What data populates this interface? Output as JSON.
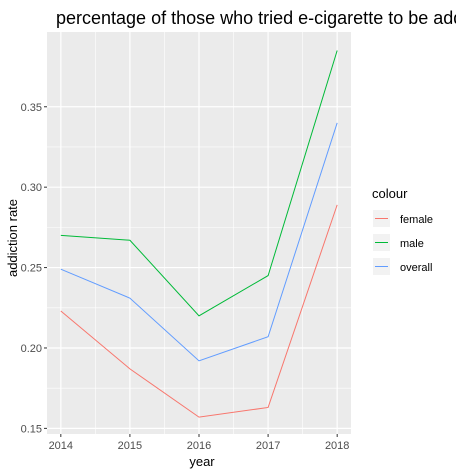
{
  "chart_data": {
    "type": "line",
    "title": "percentage of those who tried e-cigarette to be addicted",
    "xlabel": "year",
    "ylabel": "addiction rate",
    "x": [
      2014,
      2015,
      2016,
      2017,
      2018
    ],
    "xlim": [
      2013.8,
      2018.2
    ],
    "ylim": [
      0.1465,
      0.3965
    ],
    "y_ticks": [
      0.15,
      0.2,
      0.25,
      0.3,
      0.35
    ],
    "y_tick_labels": [
      "0.15",
      "0.20",
      "0.25",
      "0.30",
      "0.35"
    ],
    "x_tick_labels": [
      "2014",
      "2015",
      "2016",
      "2017",
      "2018"
    ],
    "grid": true,
    "legend_title": "colour",
    "legend_position": "right",
    "series": [
      {
        "name": "female",
        "color": "#F8766D",
        "values": [
          0.223,
          0.187,
          0.157,
          0.163,
          0.289
        ]
      },
      {
        "name": "male",
        "color": "#00BA38",
        "values": [
          0.27,
          0.267,
          0.22,
          0.245,
          0.385
        ]
      },
      {
        "name": "overall",
        "color": "#619CFF",
        "values": [
          0.249,
          0.231,
          0.192,
          0.207,
          0.34
        ]
      }
    ],
    "panel_background": "#EBEBEB",
    "grid_color": "#FFFFFF"
  }
}
